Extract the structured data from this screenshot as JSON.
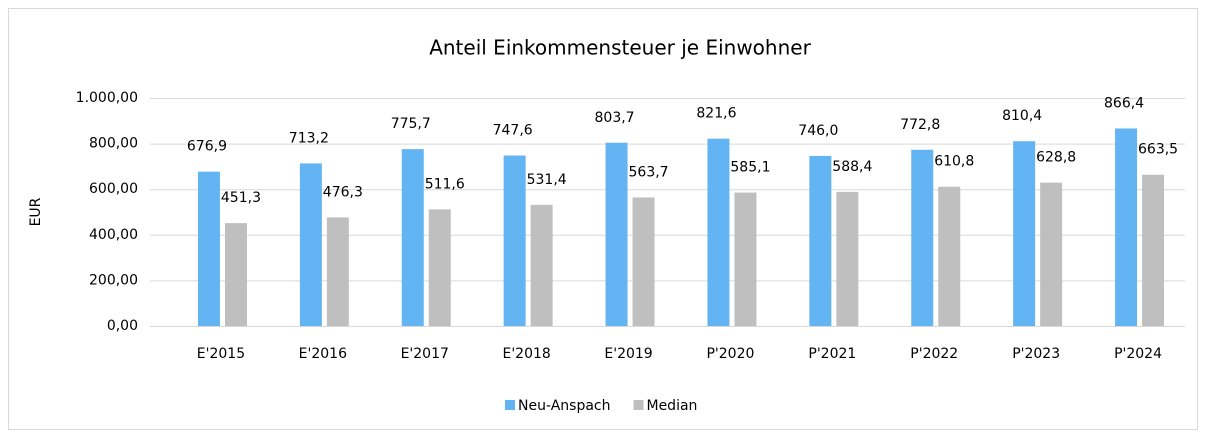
{
  "chart_data": {
    "type": "bar",
    "title": "Anteil Einkommensteuer je Einwohner",
    "y_label": "EUR",
    "categories": [
      "E'2015",
      "E'2016",
      "E'2017",
      "E'2018",
      "E'2019",
      "P'2020",
      "P'2021",
      "P'2022",
      "P'2023",
      "P'2024"
    ],
    "series": [
      {
        "name": "Neu-Anspach",
        "color": "#63b4f3",
        "values": [
          676.9,
          713.2,
          775.7,
          747.6,
          803.7,
          821.6,
          746.0,
          772.8,
          810.4,
          866.4
        ],
        "value_labels": [
          "676,9",
          "713,2",
          "775,7",
          "747,6",
          "803,7",
          "821,6",
          "746,0",
          "772,8",
          "810,4",
          "866,4"
        ]
      },
      {
        "name": "Median",
        "color": "#bfbfbf",
        "values": [
          451.3,
          476.3,
          511.6,
          531.4,
          563.7,
          585.1,
          588.4,
          610.8,
          628.8,
          663.5
        ],
        "value_labels": [
          "451,3",
          "476,3",
          "511,6",
          "531,4",
          "563,7",
          "585,1",
          "588,4",
          "610,8",
          "628,8",
          "663,5"
        ]
      }
    ],
    "ylim": [
      0,
      1000
    ],
    "yticks": [
      {
        "value": 0,
        "label": "0,00"
      },
      {
        "value": 200,
        "label": "200,00"
      },
      {
        "value": 400,
        "label": "400,00"
      },
      {
        "value": 600,
        "label": "600,00"
      },
      {
        "value": 800,
        "label": "800,00"
      },
      {
        "value": 1000,
        "label": "1.000,00"
      }
    ],
    "grid": true,
    "legend": "bottom"
  }
}
